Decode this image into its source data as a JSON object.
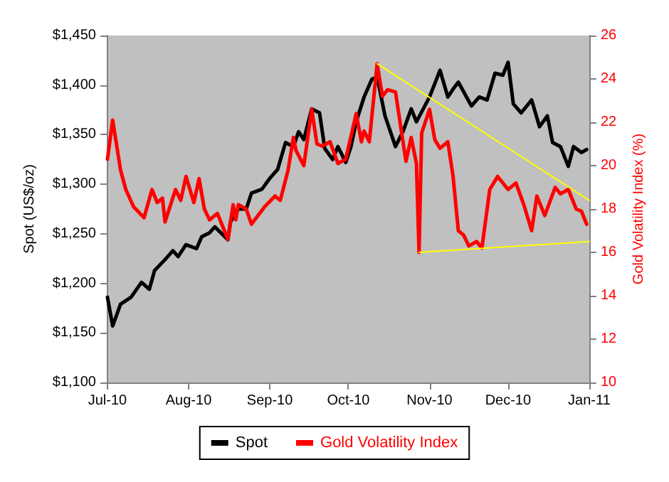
{
  "chart_data": {
    "type": "line",
    "ylabel": "Spot (US$/oz)",
    "y2label": "Gold Volatility Index (%)",
    "xlim": [
      "2010-07-01",
      "2011-01-01"
    ],
    "xticks": [
      {
        "value": "2010-07-01",
        "label": "Jul-10"
      },
      {
        "value": "2010-08-01",
        "label": "Aug-10"
      },
      {
        "value": "2010-09-01",
        "label": "Sep-10"
      },
      {
        "value": "2010-10-01",
        "label": "Oct-10"
      },
      {
        "value": "2010-11-01",
        "label": "Nov-10"
      },
      {
        "value": "2010-12-01",
        "label": "Dec-10"
      },
      {
        "value": "2011-01-01",
        "label": "Jan-11"
      }
    ],
    "ylim": [
      1100,
      1450
    ],
    "yticks": [
      {
        "value": 1100,
        "label": "$1,100"
      },
      {
        "value": 1150,
        "label": "$1,150"
      },
      {
        "value": 1200,
        "label": "$1,200"
      },
      {
        "value": 1250,
        "label": "$1,250"
      },
      {
        "value": 1300,
        "label": "$1,300"
      },
      {
        "value": 1350,
        "label": "$1,350"
      },
      {
        "value": 1400,
        "label": "$1,400"
      },
      {
        "value": 1450,
        "label": "$1,450"
      }
    ],
    "y2lim": [
      10,
      26
    ],
    "y2ticks": [
      10,
      12,
      14,
      16,
      18,
      20,
      22,
      24,
      26
    ],
    "grid": false,
    "legend": "bottom",
    "marker": "none",
    "line_style": "solid",
    "series": [
      {
        "name": "Spot",
        "color": "#000000",
        "x": [
          "2010-07-01",
          "2010-07-03",
          "2010-07-06",
          "2010-07-10",
          "2010-07-14",
          "2010-07-17",
          "2010-07-19",
          "2010-07-23",
          "2010-07-26",
          "2010-07-28",
          "2010-07-31",
          "2010-08-04",
          "2010-08-06",
          "2010-08-09",
          "2010-08-11",
          "2010-08-16",
          "2010-08-17",
          "2010-08-20",
          "2010-08-23",
          "2010-08-25",
          "2010-08-29",
          "2010-09-01",
          "2010-09-04",
          "2010-09-07",
          "2010-09-10",
          "2010-09-12",
          "2010-09-14",
          "2010-09-17",
          "2010-09-20",
          "2010-09-22",
          "2010-09-25",
          "2010-09-27",
          "2010-09-30",
          "2010-10-02",
          "2010-10-04",
          "2010-10-07",
          "2010-10-10",
          "2010-10-12",
          "2010-10-15",
          "2010-10-19",
          "2010-10-22",
          "2010-10-25",
          "2010-10-27",
          "2010-11-01",
          "2010-11-05",
          "2010-11-08",
          "2010-11-10",
          "2010-11-12",
          "2010-11-17",
          "2010-11-20",
          "2010-11-23",
          "2010-11-26",
          "2010-11-29",
          "2010-12-01",
          "2010-12-03",
          "2010-12-06",
          "2010-12-10",
          "2010-12-13",
          "2010-12-16",
          "2010-12-18",
          "2010-12-21",
          "2010-12-24",
          "2010-12-26",
          "2010-12-29",
          "2010-12-31"
        ],
        "values": [
          1186,
          1157,
          1179,
          1186,
          1201,
          1194,
          1213,
          1224,
          1233,
          1227,
          1239,
          1235,
          1247,
          1251,
          1257,
          1244,
          1262,
          1275,
          1275,
          1291,
          1295,
          1306,
          1315,
          1342,
          1338,
          1353,
          1345,
          1376,
          1372,
          1336,
          1325,
          1338,
          1322,
          1338,
          1363,
          1388,
          1406,
          1408,
          1369,
          1338,
          1354,
          1376,
          1363,
          1388,
          1415,
          1388,
          1396,
          1403,
          1379,
          1388,
          1385,
          1412,
          1410,
          1423,
          1381,
          1372,
          1385,
          1358,
          1369,
          1342,
          1338,
          1318,
          1338,
          1332,
          1335
        ]
      },
      {
        "name": "Gold Volatility Index",
        "color": "#ff0000",
        "axis": "y2",
        "x": [
          "2010-07-01",
          "2010-07-03",
          "2010-07-06",
          "2010-07-08",
          "2010-07-11",
          "2010-07-15",
          "2010-07-18",
          "2010-07-20",
          "2010-07-22",
          "2010-07-23",
          "2010-07-27",
          "2010-07-29",
          "2010-07-31",
          "2010-08-03",
          "2010-08-05",
          "2010-08-07",
          "2010-08-09",
          "2010-08-12",
          "2010-08-16",
          "2010-08-18",
          "2010-08-19",
          "2010-08-20",
          "2010-08-23",
          "2010-08-25",
          "2010-08-30",
          "2010-09-03",
          "2010-09-05",
          "2010-09-08",
          "2010-09-10",
          "2010-09-11",
          "2010-09-14",
          "2010-09-17",
          "2010-09-19",
          "2010-09-21",
          "2010-09-24",
          "2010-09-27",
          "2010-09-30",
          "2010-10-04",
          "2010-10-06",
          "2010-10-07",
          "2010-10-09",
          "2010-10-12",
          "2010-10-14",
          "2010-10-16",
          "2010-10-19",
          "2010-10-23",
          "2010-10-25",
          "2010-10-27",
          "2010-10-28",
          "2010-10-29",
          "2010-11-01",
          "2010-11-03",
          "2010-11-05",
          "2010-11-08",
          "2010-11-10",
          "2010-11-12",
          "2010-11-14",
          "2010-11-16",
          "2010-11-19",
          "2010-11-21",
          "2010-11-24",
          "2010-11-27",
          "2010-12-01",
          "2010-12-04",
          "2010-12-07",
          "2010-12-10",
          "2010-12-12",
          "2010-12-15",
          "2010-12-19",
          "2010-12-21",
          "2010-12-24",
          "2010-12-27",
          "2010-12-29",
          "2010-12-31"
        ],
        "values": [
          20.3,
          22.1,
          19.8,
          18.9,
          18.1,
          17.6,
          18.9,
          18.3,
          18.5,
          17.4,
          18.9,
          18.4,
          19.5,
          18.3,
          19.4,
          18.0,
          17.5,
          17.8,
          16.6,
          18.2,
          17.5,
          18.2,
          18.0,
          17.3,
          18.1,
          18.6,
          18.4,
          19.8,
          21.3,
          20.7,
          20.0,
          22.6,
          21.0,
          20.9,
          21.1,
          20.1,
          20.3,
          22.4,
          21.1,
          21.6,
          21.1,
          24.7,
          23.2,
          23.5,
          23.4,
          20.2,
          21.3,
          20.1,
          16.0,
          21.5,
          22.6,
          21.2,
          20.8,
          21.1,
          19.5,
          17.0,
          16.8,
          16.3,
          16.5,
          16.2,
          18.9,
          19.5,
          18.9,
          19.2,
          18.2,
          17.0,
          18.6,
          17.7,
          19.0,
          18.7,
          18.9,
          18.0,
          17.9,
          17.3
        ]
      },
      {
        "type": "line",
        "color": "#ffff00",
        "axis": "y2",
        "x": [
          "2010-10-12",
          "2011-01-01"
        ],
        "values": [
          24.7,
          18.4
        ]
      },
      {
        "type": "line",
        "color": "#ffff00",
        "axis": "y2",
        "x": [
          "2010-10-28",
          "2011-01-01"
        ],
        "values": [
          16.0,
          16.5
        ]
      }
    ]
  }
}
